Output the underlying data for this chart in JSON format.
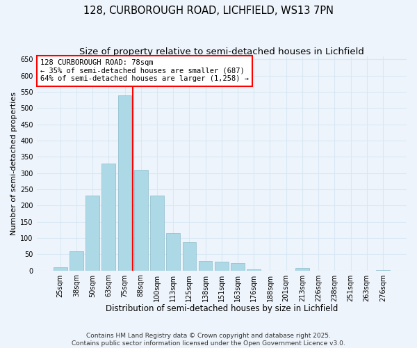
{
  "title": "128, CURBOROUGH ROAD, LICHFIELD, WS13 7PN",
  "subtitle": "Size of property relative to semi-detached houses in Lichfield",
  "xlabel": "Distribution of semi-detached houses by size in Lichfield",
  "ylabel": "Number of semi-detached properties",
  "bar_labels": [
    "25sqm",
    "38sqm",
    "50sqm",
    "63sqm",
    "75sqm",
    "88sqm",
    "100sqm",
    "113sqm",
    "125sqm",
    "138sqm",
    "151sqm",
    "163sqm",
    "176sqm",
    "188sqm",
    "201sqm",
    "213sqm",
    "226sqm",
    "238sqm",
    "251sqm",
    "263sqm",
    "276sqm"
  ],
  "bar_values": [
    10,
    60,
    230,
    330,
    540,
    310,
    230,
    115,
    88,
    30,
    27,
    22,
    3,
    0,
    0,
    8,
    0,
    0,
    0,
    0,
    2
  ],
  "bar_color": "#add8e6",
  "bar_edge_color": "#8bbccc",
  "marker_index": 5,
  "marker_color": "red",
  "annotation_text": "128 CURBOROUGH ROAD: 78sqm\n← 35% of semi-detached houses are smaller (687)\n64% of semi-detached houses are larger (1,258) →",
  "annotation_box_color": "white",
  "annotation_box_edge_color": "red",
  "ylim": [
    0,
    660
  ],
  "yticks": [
    0,
    50,
    100,
    150,
    200,
    250,
    300,
    350,
    400,
    450,
    500,
    550,
    600,
    650
  ],
  "background_color": "#eef4fb",
  "grid_color": "#d8e8f4",
  "footer_line1": "Contains HM Land Registry data © Crown copyright and database right 2025.",
  "footer_line2": "Contains public sector information licensed under the Open Government Licence v3.0.",
  "title_fontsize": 10.5,
  "subtitle_fontsize": 9.5,
  "xlabel_fontsize": 8.5,
  "ylabel_fontsize": 8,
  "tick_fontsize": 7,
  "footer_fontsize": 6.5,
  "annot_fontsize": 7.5
}
